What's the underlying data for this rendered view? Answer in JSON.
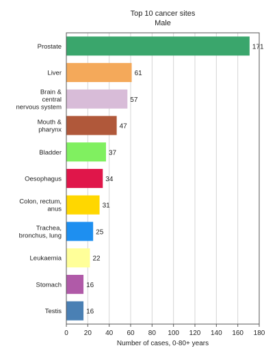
{
  "chart_data": {
    "type": "bar",
    "orientation": "horizontal",
    "title": "Top 10 cancer sites",
    "subtitle": "Male",
    "xlabel": "Number of cases, 0-80+ years",
    "ylabel": "",
    "xlim": [
      0,
      180
    ],
    "x_ticks": [
      0,
      20,
      40,
      60,
      80,
      100,
      120,
      140,
      160,
      180
    ],
    "grid": "vertical",
    "legend": "none",
    "categories": [
      [
        "Prostate"
      ],
      [
        "Liver"
      ],
      [
        "Brain &",
        "central",
        "nervous system"
      ],
      [
        "Mouth &",
        "pharynx"
      ],
      [
        "Bladder"
      ],
      [
        "Oesophagus"
      ],
      [
        "Colon, rectum,",
        "anus"
      ],
      [
        "Trachea,",
        "bronchus, lung"
      ],
      [
        "Leukaemia"
      ],
      [
        "Stomach"
      ],
      [
        "Testis"
      ]
    ],
    "values": [
      171,
      61,
      57,
      47,
      37,
      34,
      31,
      25,
      22,
      16,
      16
    ],
    "colors": [
      "#3aa66c",
      "#f4a95a",
      "#d8bcd8",
      "#b0583a",
      "#80f060",
      "#e0164a",
      "#ffd700",
      "#1e8ff0",
      "#ffff99",
      "#b05aa8",
      "#4a80b4"
    ]
  }
}
